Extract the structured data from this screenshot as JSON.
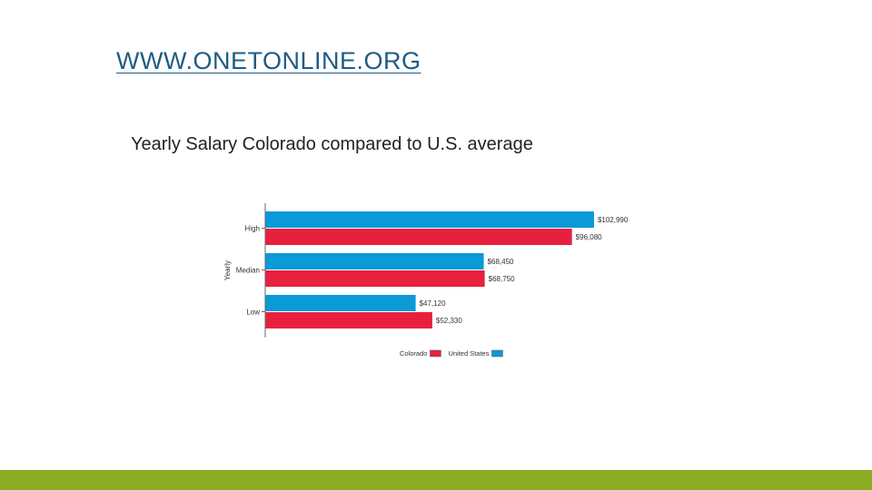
{
  "slide": {
    "title": "WWW.ONETONLINE.ORG",
    "subtitle": "Yearly Salary Colorado compared to U.S. average",
    "footer_color": "#8aad24"
  },
  "chart_data": {
    "type": "bar",
    "orientation": "horizontal",
    "title": "",
    "ylabel": "Yearly",
    "xlabel": "",
    "categories": [
      "High",
      "Median",
      "Low"
    ],
    "series": [
      {
        "name": "United States",
        "color": "#0a9ad8",
        "values": [
          102990,
          68450,
          47120
        ],
        "labels": [
          "$102,990",
          "$68,450",
          "$47,120"
        ]
      },
      {
        "name": "Colorado",
        "color": "#e8203e",
        "values": [
          96080,
          68750,
          52330
        ],
        "labels": [
          "$96,080",
          "$68,750",
          "$52,330"
        ]
      }
    ],
    "xlim": [
      0,
      103000
    ],
    "grid": false,
    "legend": [
      {
        "name": "Colorado",
        "color": "#e8203e"
      },
      {
        "name": "United States",
        "color": "#0a9ad8"
      }
    ],
    "legend_position": "bottom"
  }
}
